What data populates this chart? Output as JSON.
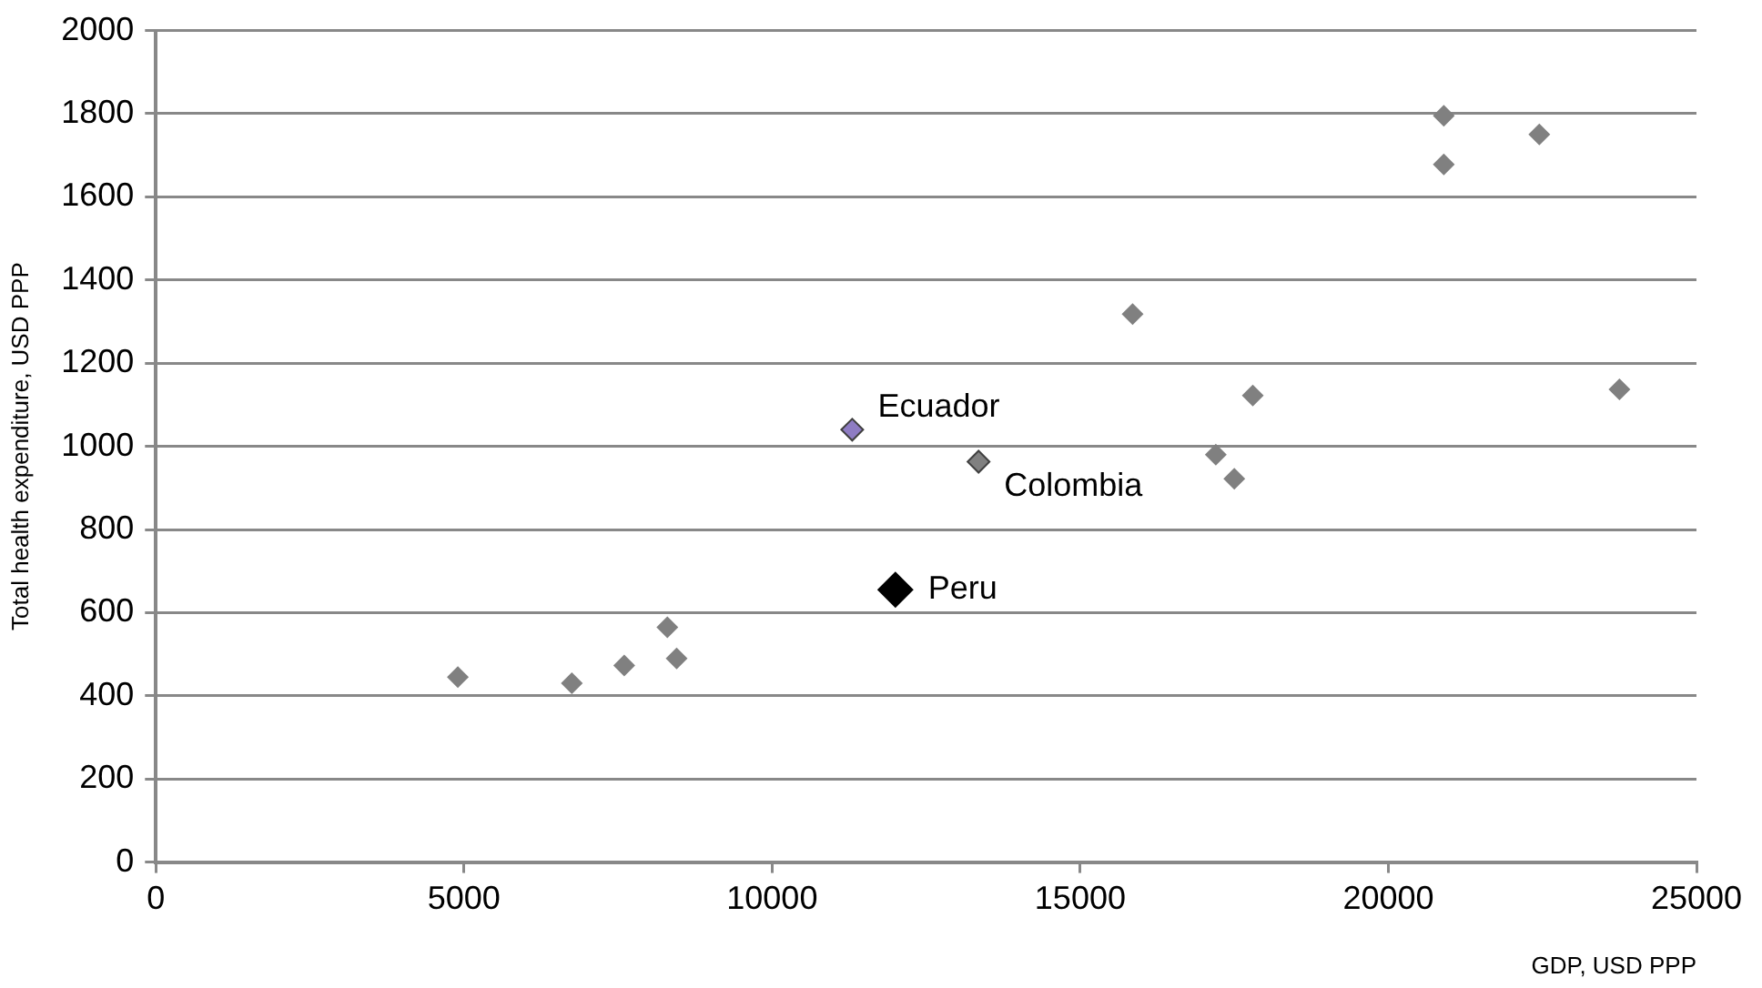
{
  "chart_data": {
    "type": "scatter",
    "xlabel": "GDP, USD PPP",
    "ylabel": "Total health expenditure, USD PPP",
    "xlim": [
      0,
      25000
    ],
    "xticks": [
      0,
      5000,
      10000,
      15000,
      20000,
      25000
    ],
    "ylim": [
      0,
      2000
    ],
    "yticks": [
      0,
      200,
      400,
      600,
      800,
      1000,
      1200,
      1400,
      1600,
      1800,
      2000
    ],
    "grid": "y",
    "legend": false,
    "marker": "diamond",
    "series": [
      {
        "color": "#808080",
        "x": [
          4900,
          6750,
          7600,
          8300,
          8450,
          15850,
          17200,
          17500,
          17800,
          20900,
          20900,
          22450,
          23750
        ],
        "values": [
          445,
          430,
          473,
          565,
          490,
          1318,
          980,
          922,
          1122,
          1795,
          1678,
          1750,
          1137
        ]
      },
      {
        "name": "Ecuador",
        "color": "#8e7cc3",
        "x": [
          11300
        ],
        "values": [
          1040
        ]
      },
      {
        "name": "Colombia",
        "color": "#808080",
        "x": [
          13350
        ],
        "values": [
          963
        ]
      },
      {
        "name": "Peru",
        "color": "#000000",
        "x": [
          12000
        ],
        "values": [
          655
        ]
      }
    ]
  }
}
